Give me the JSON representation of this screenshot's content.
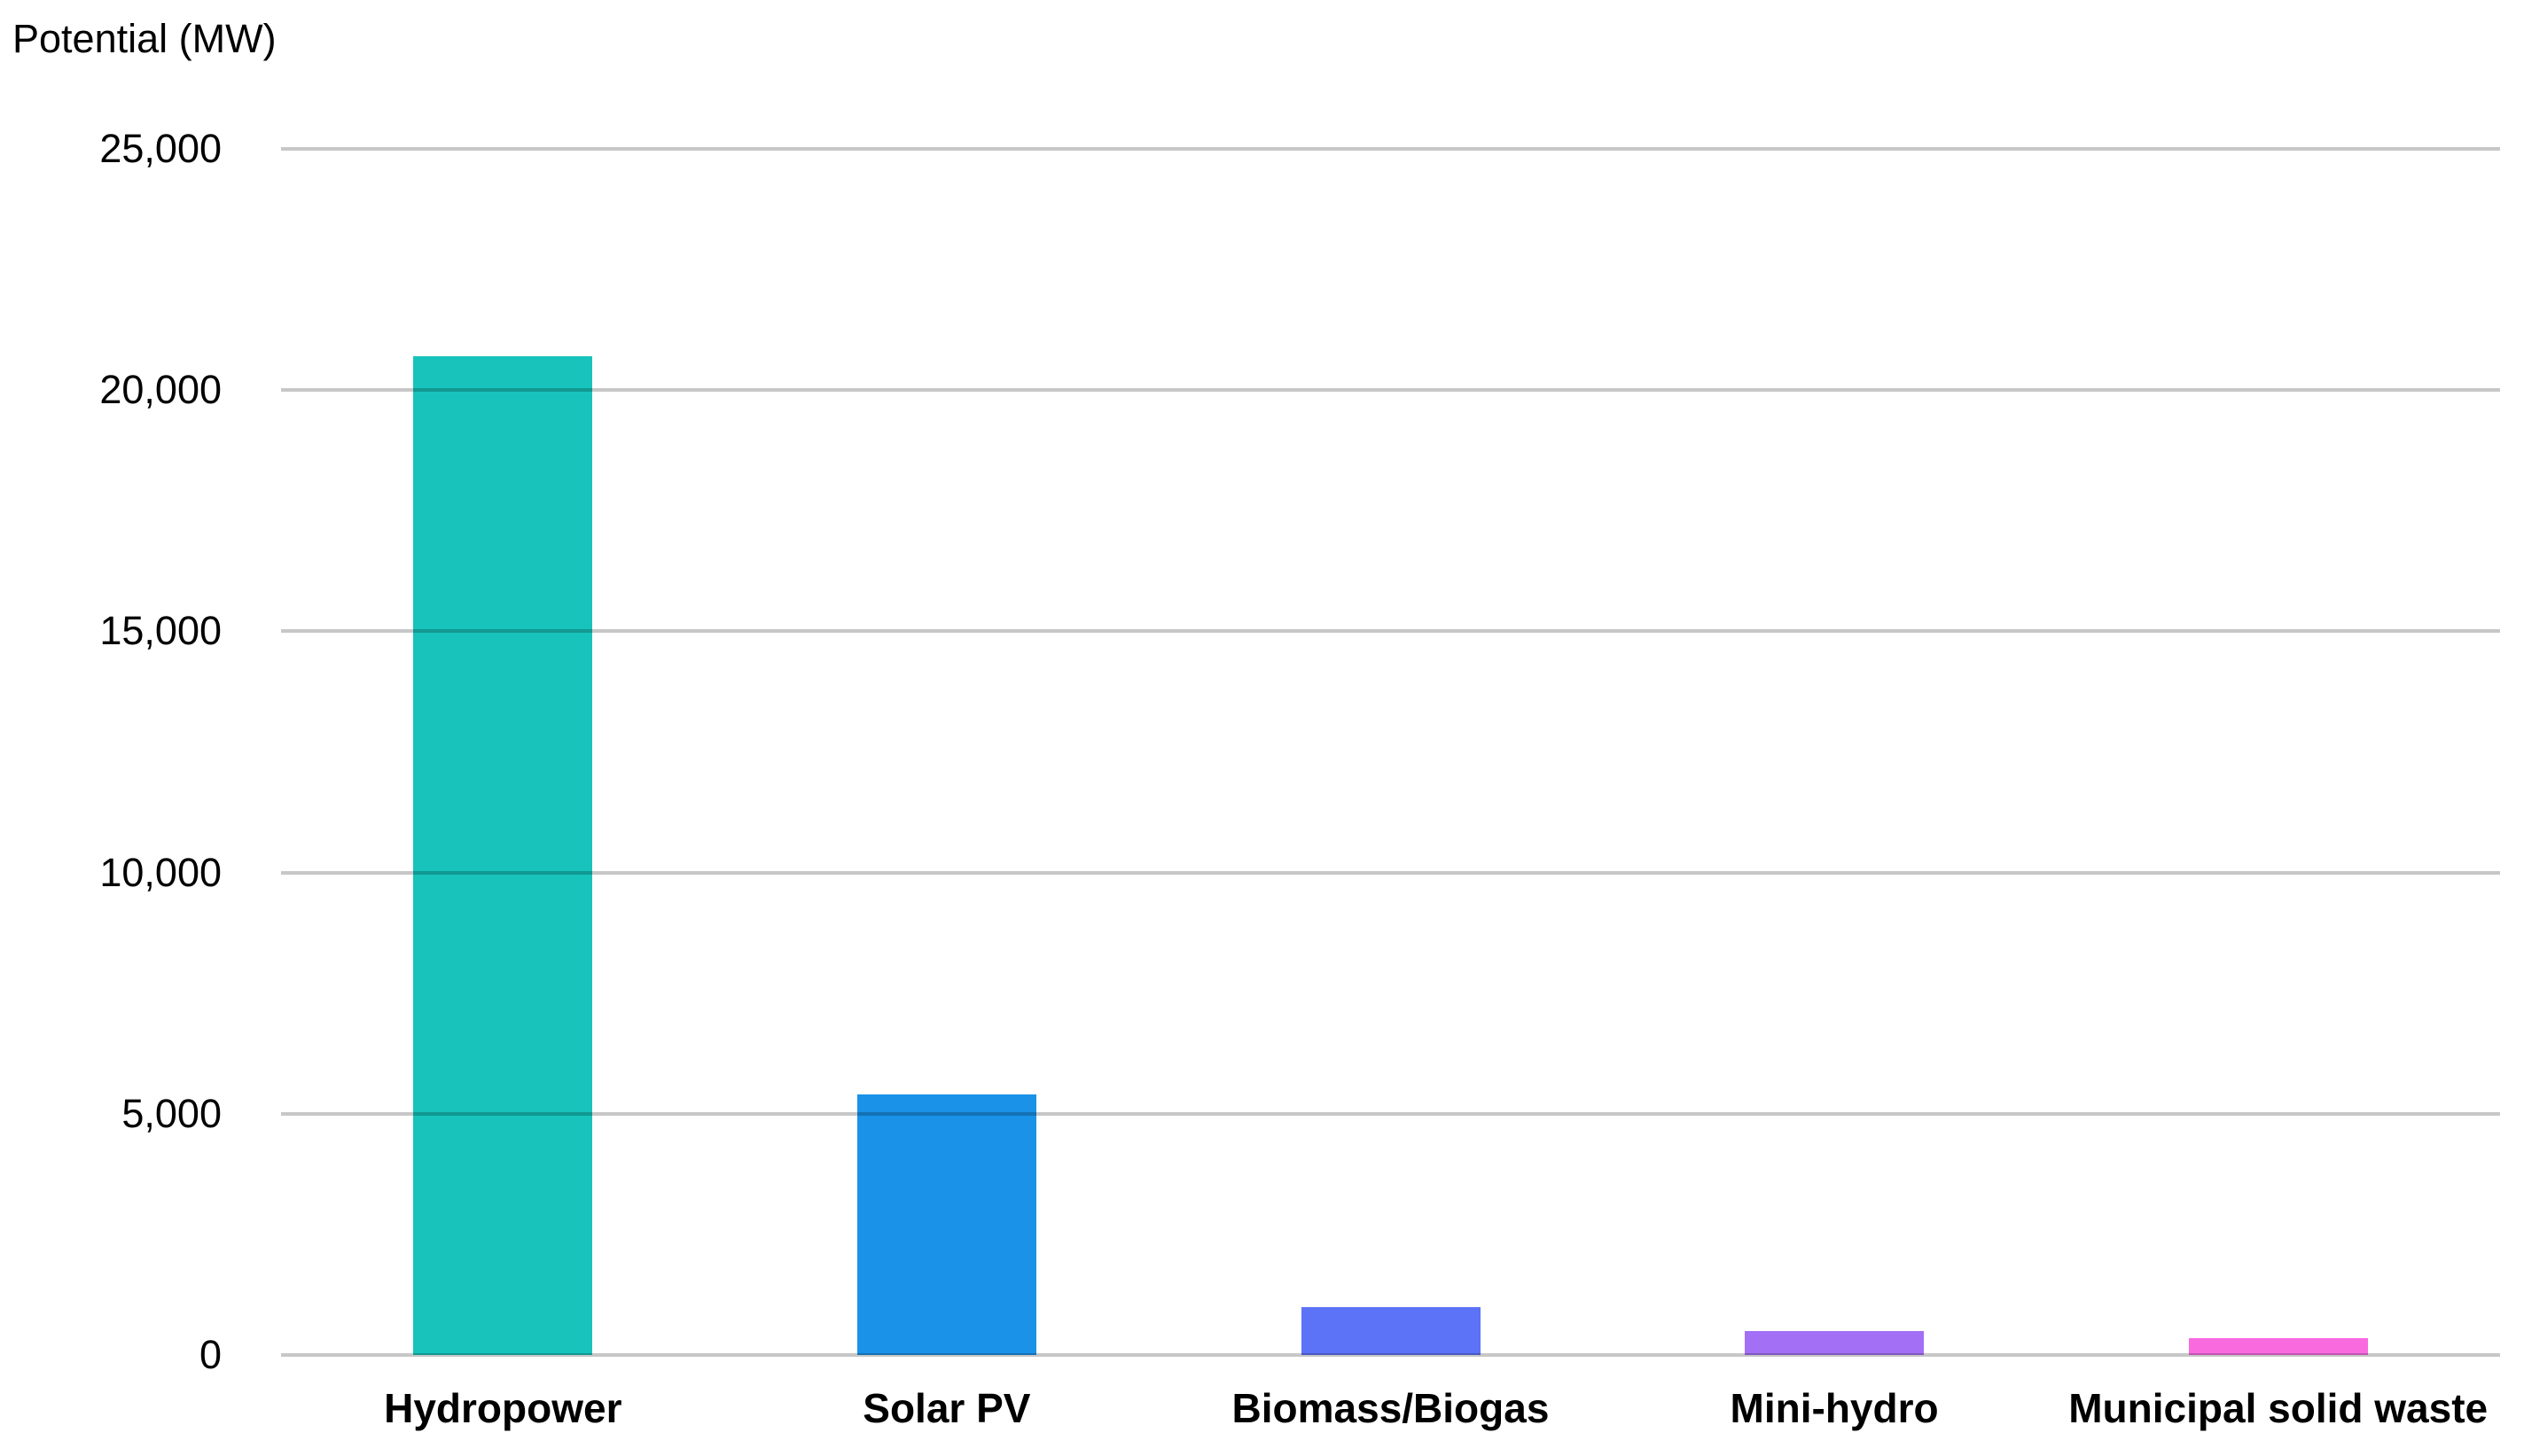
{
  "chart_title": "Potential (MW)",
  "colors": {
    "background": "#ffffff",
    "gridline": "#c7c7c7",
    "text": "#000000"
  },
  "chart_data": {
    "type": "bar",
    "title": "Potential (MW)",
    "xlabel": "",
    "ylabel": "Potential (MW)",
    "categories": [
      "Hydropower",
      "Solar PV",
      "Biomass/Biogas",
      "Mini-hydro",
      "Municipal solid waste"
    ],
    "values": [
      20700,
      5400,
      1000,
      500,
      350
    ],
    "bar_colors": [
      "#17c3bb",
      "#1992e8",
      "#5c72f7",
      "#a36ff4",
      "#f96adf"
    ],
    "ylim": [
      0,
      25000
    ],
    "yticks": [
      0,
      5000,
      10000,
      15000,
      20000,
      25000
    ],
    "ytick_labels": [
      "0",
      "5,000",
      "10,000",
      "15,000",
      "20,000",
      "25,000"
    ],
    "grid": true,
    "legend": false
  }
}
